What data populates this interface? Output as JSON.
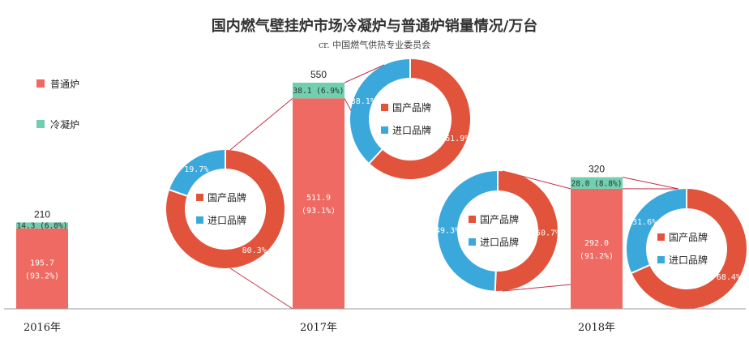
{
  "chart_data": {
    "type": "bar",
    "title": "国内燃气壁挂炉市场冷凝炉与普通炉销量情况/万台",
    "subtitle": "cr. 中国燃气供热专业委员会",
    "categories": [
      "2016年",
      "2017年",
      "2018年"
    ],
    "totals": [
      210,
      550,
      320
    ],
    "series": [
      {
        "name": "普通炉",
        "color": "#ee6a62",
        "values": [
          195.7,
          511.9,
          292.0
        ],
        "labels": [
          "195.7\n(93.2%)",
          "511.9\n(93.1%)",
          "292.0\n(91.2%)"
        ]
      },
      {
        "name": "冷凝炉",
        "color": "#6fcfae",
        "values": [
          14.3,
          38.1,
          28.0
        ],
        "labels": [
          "14.3 (6.8%)",
          "38.1 (6.9%)",
          "28.0 (8.8%)"
        ]
      }
    ],
    "donuts": [
      {
        "year": "2017年",
        "source": "普通炉",
        "slices": [
          {
            "name": "国产品牌",
            "value": 80.3,
            "label": "80.3%",
            "color": "#e2533c"
          },
          {
            "name": "进口品牌",
            "value": 19.7,
            "label": "19.7%",
            "color": "#3ba8dc"
          }
        ]
      },
      {
        "year": "2017年",
        "source": "冷凝炉",
        "slices": [
          {
            "name": "国产品牌",
            "value": 61.9,
            "label": "61.9%",
            "color": "#e2533c"
          },
          {
            "name": "进口品牌",
            "value": 38.1,
            "label": "38.1%",
            "color": "#3ba8dc"
          }
        ]
      },
      {
        "year": "2018年",
        "source": "普通炉",
        "slices": [
          {
            "name": "国产品牌",
            "value": 50.7,
            "label": "50.7%",
            "color": "#e2533c"
          },
          {
            "name": "进口品牌",
            "value": 49.3,
            "label": "49.3%",
            "color": "#3ba8dc"
          }
        ]
      },
      {
        "year": "2018年",
        "source": "冷凝炉",
        "slices": [
          {
            "name": "国产品牌",
            "value": 68.4,
            "label": "68.4%",
            "color": "#e2533c"
          },
          {
            "name": "进口品牌",
            "value": 31.6,
            "label": "31.6%",
            "color": "#3ba8dc"
          }
        ]
      }
    ],
    "legend": [
      {
        "name": "普通炉",
        "color": "#ee6a62"
      },
      {
        "name": "冷凝炉",
        "color": "#6fcfae"
      }
    ],
    "legend_position": "top-left",
    "grid": false
  }
}
